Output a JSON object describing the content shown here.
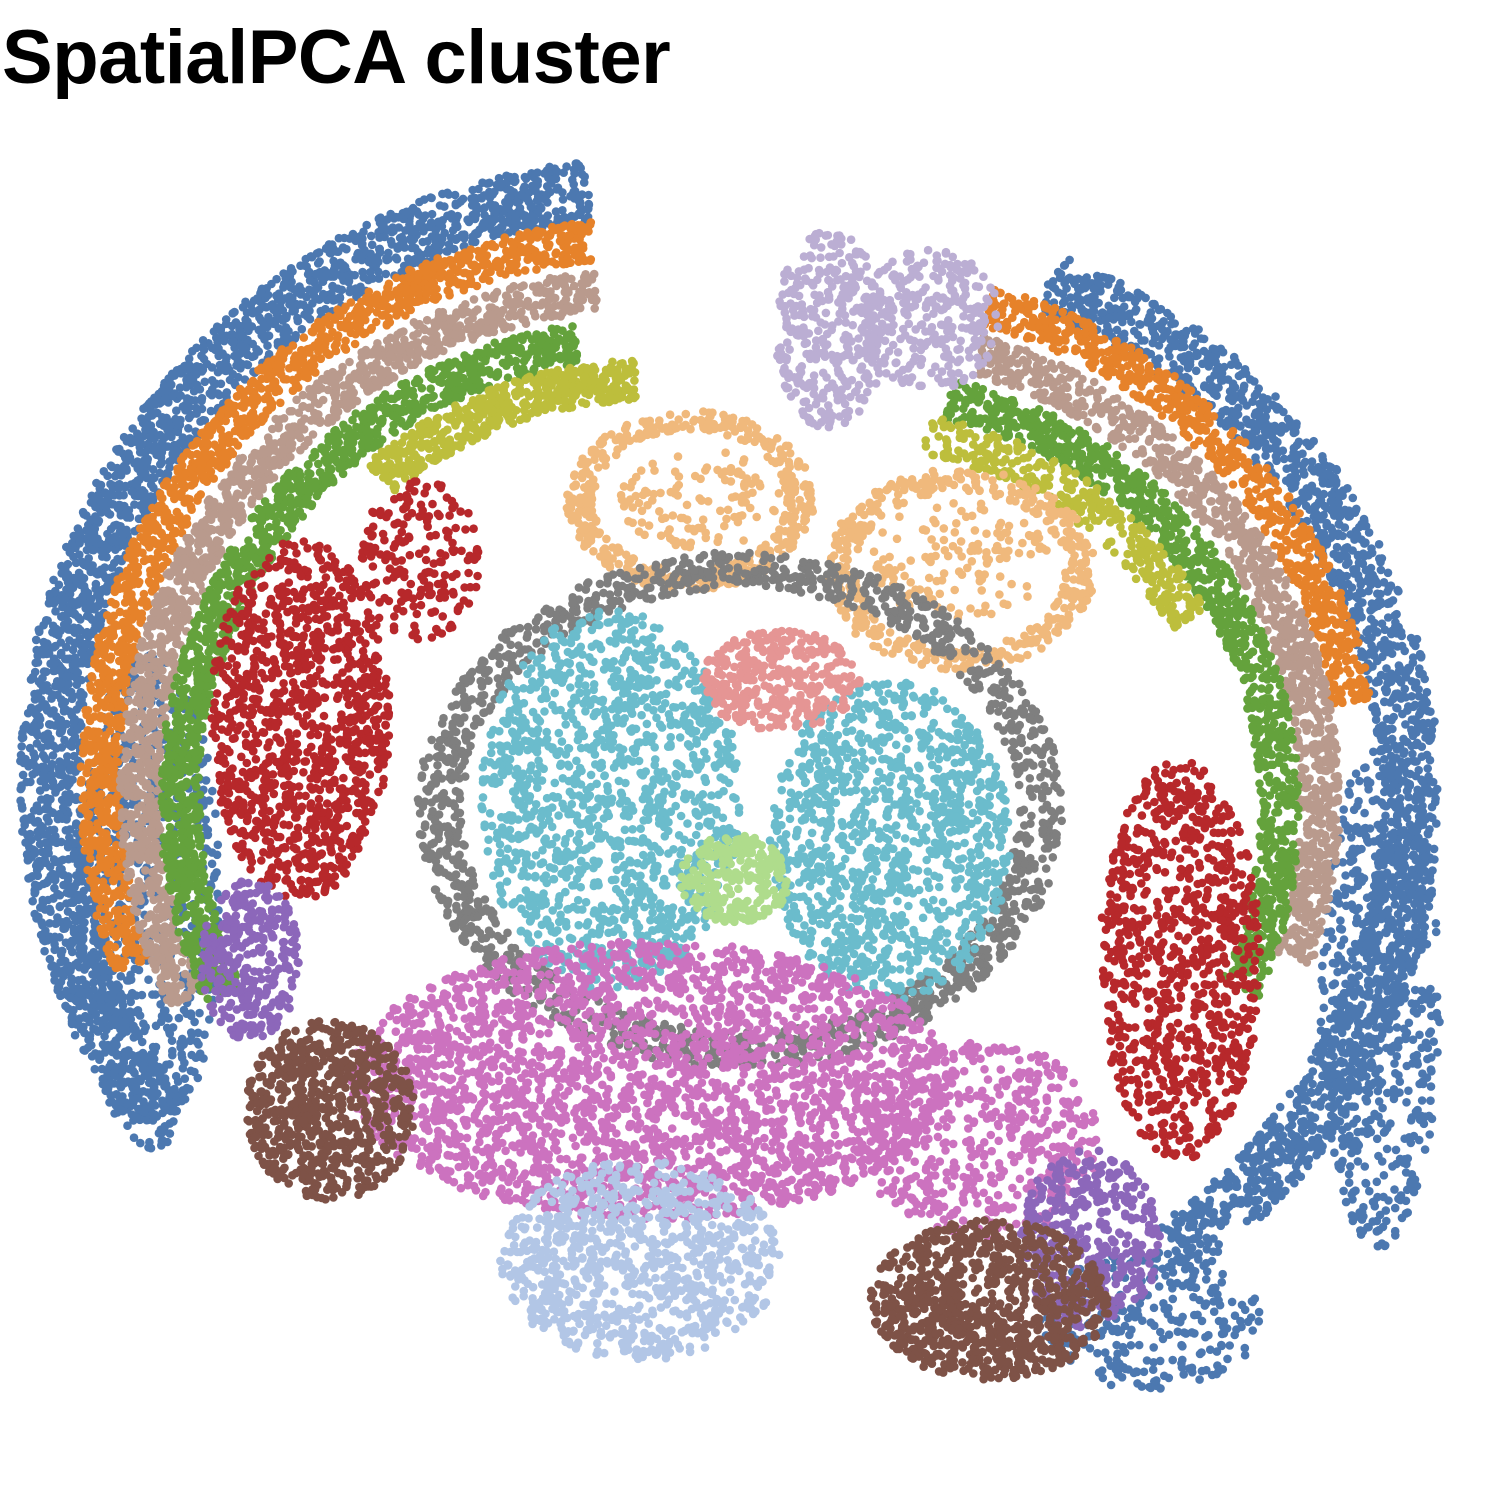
{
  "chart_data": {
    "type": "scatter",
    "title": "SpatialPCA cluster",
    "xlabel": "",
    "ylabel": "",
    "axes_visible": false,
    "grid": false,
    "legend": "none",
    "point_style": "filled circle, densely packed spatial spots",
    "series": [
      {
        "name": "",
        "color": "#4C78B0",
        "region": "outer cortex / meninges band"
      },
      {
        "name": "",
        "color": "#E6822A",
        "region": "cortical layer 1 arc"
      },
      {
        "name": "",
        "color": "#B99A8D",
        "region": "cortical layer 2 arc"
      },
      {
        "name": "",
        "color": "#64A23C",
        "region": "cortical layer 3 arc"
      },
      {
        "name": "",
        "color": "#BDBE3C",
        "region": "cortical layer 4 arc"
      },
      {
        "name": "",
        "color": "#BBAED3",
        "region": "midline dorsal region"
      },
      {
        "name": "",
        "color": "#F0B97C",
        "region": "hippocampal loops"
      },
      {
        "name": "",
        "color": "#B7282B",
        "region": "lateral patches"
      },
      {
        "name": "",
        "color": "#7F7F7F",
        "region": "thalamic ring"
      },
      {
        "name": "",
        "color": "#6BBCCC",
        "region": "central thalamus"
      },
      {
        "name": "",
        "color": "#E59594",
        "region": "habenula"
      },
      {
        "name": "",
        "color": "#AFDC8C",
        "region": "central small cluster"
      },
      {
        "name": "",
        "color": "#CC72BF",
        "region": "ventral band"
      },
      {
        "name": "",
        "color": "#8C67BA",
        "region": "ventrolateral patches"
      },
      {
        "name": "",
        "color": "#7E5247",
        "region": "ventral bilateral blobs"
      },
      {
        "name": "",
        "color": "#B2C6E6",
        "region": "ventral midline"
      }
    ]
  }
}
